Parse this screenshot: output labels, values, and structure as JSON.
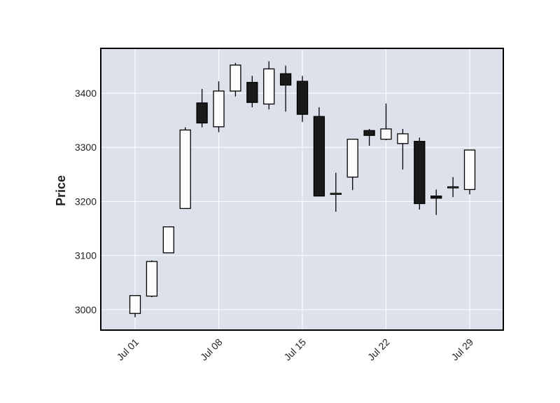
{
  "chart_data": {
    "type": "candlestick",
    "title": "",
    "xlabel": "",
    "ylabel": "Price",
    "ylim": [
      2963,
      3485
    ],
    "grid": true,
    "legend": null,
    "yticks": [
      3000,
      3100,
      3200,
      3300,
      3400
    ],
    "xticks": [
      {
        "label": "Jul 01",
        "index": 0
      },
      {
        "label": "Jul 08",
        "index": 5
      },
      {
        "label": "Jul 15",
        "index": 10
      },
      {
        "label": "Jul 22",
        "index": 15
      },
      {
        "label": "Jul 29",
        "index": 20
      }
    ],
    "colors": {
      "up": "#fdfdfd",
      "down": "#1a1a1a",
      "edge": "#000000",
      "background": "#dce1ec",
      "grid": "#ffffff"
    },
    "candles": [
      {
        "date": "Jul 01",
        "open": 2993,
        "high": 3026,
        "low": 2986,
        "close": 3026
      },
      {
        "date": "Jul 02",
        "open": 3025,
        "high": 3091,
        "low": 3023,
        "close": 3089
      },
      {
        "date": "Jul 03",
        "open": 3105,
        "high": 3153,
        "low": 3105,
        "close": 3153
      },
      {
        "date": "Jul 05",
        "open": 3187,
        "high": 3337,
        "low": 3187,
        "close": 3332
      },
      {
        "date": "Jul 06",
        "open": 3382,
        "high": 3408,
        "low": 3337,
        "close": 3345
      },
      {
        "date": "Jul 08",
        "open": 3338,
        "high": 3422,
        "low": 3328,
        "close": 3404
      },
      {
        "date": "Jul 09",
        "open": 3404,
        "high": 3456,
        "low": 3394,
        "close": 3452
      },
      {
        "date": "Jul 10",
        "open": 3420,
        "high": 3432,
        "low": 3374,
        "close": 3383
      },
      {
        "date": "Jul 11",
        "open": 3380,
        "high": 3459,
        "low": 3370,
        "close": 3445
      },
      {
        "date": "Jul 12",
        "open": 3436,
        "high": 3451,
        "low": 3366,
        "close": 3415
      },
      {
        "date": "Jul 15",
        "open": 3422,
        "high": 3432,
        "low": 3347,
        "close": 3361
      },
      {
        "date": "Jul 16",
        "open": 3357,
        "high": 3374,
        "low": 3210,
        "close": 3210
      },
      {
        "date": "Jul 17",
        "open": 3215,
        "high": 3253,
        "low": 3181,
        "close": 3215
      },
      {
        "date": "Jul 18",
        "open": 3245,
        "high": 3315,
        "low": 3221,
        "close": 3315
      },
      {
        "date": "Jul 19",
        "open": 3331,
        "high": 3334,
        "low": 3303,
        "close": 3322
      },
      {
        "date": "Jul 22",
        "open": 3315,
        "high": 3381,
        "low": 3313,
        "close": 3334
      },
      {
        "date": "Jul 23",
        "open": 3307,
        "high": 3334,
        "low": 3259,
        "close": 3325
      },
      {
        "date": "Jul 24",
        "open": 3311,
        "high": 3318,
        "low": 3185,
        "close": 3196
      },
      {
        "date": "Jul 25",
        "open": 3210,
        "high": 3222,
        "low": 3175,
        "close": 3206
      },
      {
        "date": "Jul 26",
        "open": 3227,
        "high": 3245,
        "low": 3208,
        "close": 3227
      },
      {
        "date": "Jul 29",
        "open": 3222,
        "high": 3295,
        "low": 3213,
        "close": 3295
      }
    ]
  }
}
